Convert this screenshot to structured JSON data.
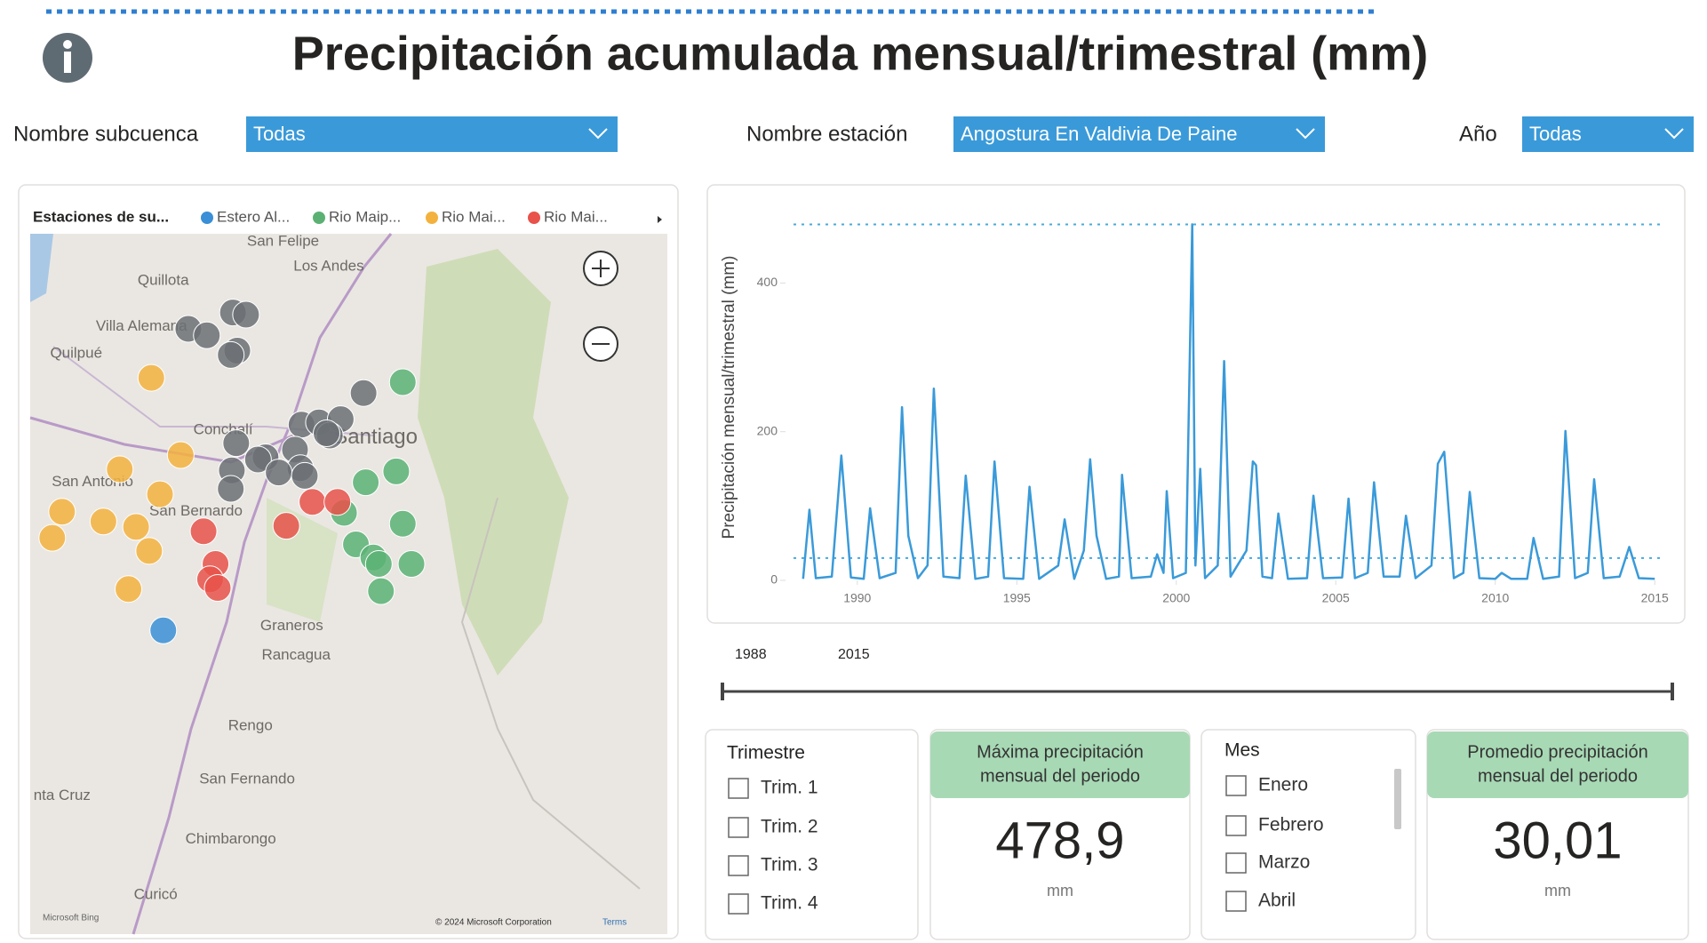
{
  "header": {
    "title": "Precipitación acumulada mensual/trimestral (mm)"
  },
  "filters": [
    {
      "label": "Nombre subcuenca",
      "value": "Todas"
    },
    {
      "label": "Nombre estación",
      "value": "Angostura En Valdivia De Paine"
    },
    {
      "label": "Año",
      "value": "Todas"
    }
  ],
  "map": {
    "legend_title": "Estaciones de su...",
    "legend": [
      {
        "name": "Estero Al...",
        "color": "#3a8fd6"
      },
      {
        "name": "Rio Maip...",
        "color": "#5bb174"
      },
      {
        "name": "Rio Mai...",
        "color": "#f3b23e"
      },
      {
        "name": "Rio Mai...",
        "color": "#e8524a"
      }
    ],
    "places": [
      "San Felipe",
      "Los Andes",
      "Quillota",
      "Villa Alemana",
      "Quilpué",
      "Conchalí",
      "Santiago",
      "San Antonio",
      "San Bernardo",
      "Graneros",
      "Rancagua",
      "Rengo",
      "San Fernando",
      "nta Cruz",
      "Chimbarongo",
      "Curicó"
    ],
    "attribution": "© 2024 Microsoft Corporation",
    "terms": "Terms",
    "brand": "Microsoft Bing"
  },
  "chart_data": {
    "type": "line",
    "y_label": "Precipitación mensual/trimestral (mm)",
    "color": "#3a9ad9",
    "x": [
      1988.3,
      1988.5,
      1988.7,
      1989.2,
      1989.5,
      1989.8,
      1990.2,
      1990.4,
      1990.7,
      1991.2,
      1991.4,
      1991.6,
      1991.9,
      1992.2,
      1992.4,
      1992.7,
      1993.2,
      1993.4,
      1993.7,
      1994.1,
      1994.3,
      1994.6,
      1995.2,
      1995.4,
      1995.7,
      1996.3,
      1996.5,
      1996.8,
      1997.1,
      1997.3,
      1997.5,
      1997.8,
      1998.2,
      1998.3,
      1998.6,
      1999.2,
      1999.4,
      1999.6,
      1999.7,
      1999.9,
      2000.3,
      2000.5,
      2000.6,
      2000.75,
      2000.9,
      2001.3,
      2001.5,
      2001.7,
      2002.2,
      2002.4,
      2002.5,
      2002.7,
      2003.0,
      2003.2,
      2003.5,
      2004.1,
      2004.3,
      2004.6,
      2005.2,
      2005.4,
      2005.6,
      2006.0,
      2006.2,
      2006.5,
      2007.0,
      2007.2,
      2007.5,
      2008.0,
      2008.2,
      2008.4,
      2008.7,
      2009.0,
      2009.2,
      2009.5,
      2010.0,
      2010.2,
      2010.5,
      2011.0,
      2011.2,
      2011.5,
      2012.0,
      2012.2,
      2012.5,
      2012.9,
      2013.1,
      2013.4,
      2013.9,
      2014.2,
      2014.5,
      2015.0
    ],
    "values": [
      2,
      95,
      3,
      5,
      168,
      4,
      2,
      97,
      3,
      10,
      233,
      60,
      3,
      20,
      258,
      5,
      3,
      141,
      2,
      5,
      160,
      3,
      2,
      126,
      2,
      20,
      82,
      2,
      40,
      163,
      60,
      2,
      5,
      142,
      3,
      5,
      35,
      10,
      120,
      3,
      10,
      479,
      20,
      150,
      3,
      20,
      295,
      5,
      40,
      160,
      155,
      5,
      3,
      90,
      2,
      3,
      114,
      3,
      4,
      110,
      3,
      10,
      132,
      5,
      5,
      87,
      3,
      20,
      157,
      173,
      3,
      10,
      119,
      3,
      2,
      10,
      2,
      2,
      57,
      2,
      5,
      201,
      3,
      10,
      136,
      3,
      5,
      45,
      3,
      2
    ],
    "xlim": [
      1988,
      2015.3
    ],
    "ylim": [
      0,
      495
    ],
    "xticks": [
      1990,
      1995,
      2000,
      2005,
      2010,
      2015
    ],
    "yticks": [
      0,
      200,
      400
    ],
    "reference_lines": [
      478.9,
      30.01
    ],
    "reference_color": "#4aa8dd"
  },
  "slider": {
    "start": 1988,
    "end": 2015
  },
  "slicers": [
    {
      "title": "Trimestre",
      "items": [
        "Trim. 1",
        "Trim. 2",
        "Trim. 3",
        "Trim. 4"
      ]
    },
    {
      "title": "Mes",
      "items": [
        "Enero",
        "Febrero",
        "Marzo",
        "Abril"
      ]
    }
  ],
  "cards": [
    {
      "title": [
        "Máxima precipitación",
        "mensual del periodo"
      ],
      "value": "478,9",
      "unit": "mm"
    },
    {
      "title": [
        "Promedio precipitación",
        "mensual del periodo"
      ],
      "value": "30,01",
      "unit": "mm"
    }
  ]
}
